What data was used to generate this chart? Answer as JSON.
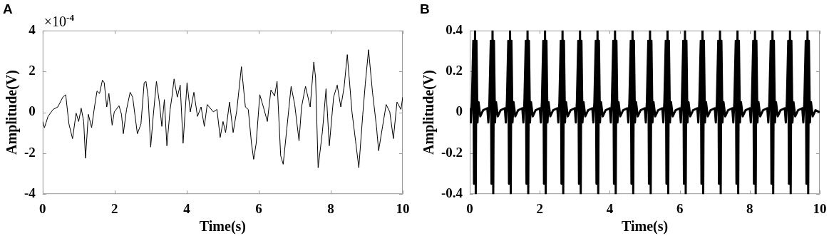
{
  "chart_data": [
    {
      "type": "line",
      "title": "A",
      "xlabel": "Time(s)",
      "ylabel": "Amplitude(V)",
      "annotations": [
        "×10$^{-4}$"
      ],
      "xlim": [
        0,
        10
      ],
      "ylim": [
        -4,
        4
      ],
      "xticks": [
        0,
        2,
        4,
        6,
        8,
        10
      ],
      "yticks": [
        -4,
        -2,
        0,
        2,
        4
      ],
      "x": [
        0,
        0.05,
        0.15,
        0.29,
        0.42,
        0.56,
        0.64,
        0.73,
        0.83,
        0.93,
        1.0,
        1.07,
        1.14,
        1.19,
        1.27,
        1.36,
        1.44,
        1.51,
        1.58,
        1.66,
        1.71,
        1.78,
        1.84,
        1.93,
        1.99,
        2.12,
        2.19,
        2.24,
        2.33,
        2.43,
        2.5,
        2.63,
        2.73,
        2.82,
        2.87,
        2.93,
        3.0,
        3.07,
        3.16,
        3.24,
        3.31,
        3.38,
        3.45,
        3.54,
        3.59,
        3.65,
        3.74,
        3.82,
        3.9,
        4.01,
        4.1,
        4.2,
        4.3,
        4.4,
        4.49,
        4.57,
        4.74,
        4.84,
        4.93,
        5.01,
        5.08,
        5.19,
        5.29,
        5.39,
        5.52,
        5.63,
        5.71,
        5.8,
        5.86,
        5.93,
        6.03,
        6.13,
        6.24,
        6.34,
        6.44,
        6.51,
        6.61,
        6.68,
        6.78,
        6.9,
        7.0,
        7.12,
        7.19,
        7.3,
        7.43,
        7.53,
        7.58,
        7.65,
        7.77,
        7.87,
        7.96,
        8.08,
        8.18,
        8.28,
        8.37,
        8.46,
        8.59,
        8.69,
        8.78,
        8.89,
        8.96,
        9.05,
        9.16,
        9.27,
        9.33,
        9.44,
        9.54,
        9.64,
        9.74,
        9.84,
        9.95,
        10.0
      ],
      "series": [
        {
          "color": "#000000",
          "values": [
            -0.45,
            -0.75,
            -0.2,
            0.14,
            0.26,
            0.74,
            0.86,
            -0.57,
            -1.29,
            -0.04,
            -0.45,
            0.2,
            -0.45,
            -2.24,
            -0.1,
            -0.75,
            0.26,
            1.04,
            0.92,
            1.57,
            1.45,
            0.26,
            0.92,
            -0.63,
            0.02,
            0.32,
            -0.1,
            -1.05,
            0.14,
            0.98,
            0.74,
            -1.05,
            -0.57,
            1.45,
            1.51,
            0.74,
            -1.7,
            -0.2,
            1.51,
            0.5,
            -0.69,
            0.62,
            -1.64,
            0.14,
            0.74,
            1.63,
            0.74,
            1.33,
            -1.52,
            1.45,
            0.02,
            0.98,
            -0.2,
            0.26,
            -0.69,
            0.38,
            0.02,
            0.14,
            -1.23,
            -0.45,
            -0.99,
            0.5,
            -0.99,
            0.08,
            2.23,
            0.26,
            0.14,
            -1.52,
            -2.3,
            -1.52,
            0.86,
            0.26,
            -0.45,
            1.1,
            0.8,
            1.51,
            -2.12,
            -2.54,
            -0.81,
            1.27,
            0.38,
            -1.4,
            0.26,
            1.27,
            0.26,
            2.46,
            1.69,
            -2.71,
            -0.93,
            1.15,
            -1.64,
            0.74,
            1.33,
            0.26,
            1.21,
            2.82,
            0.02,
            -1.4,
            -2.71,
            -0.1,
            1.39,
            3.06,
            0.98,
            -0.69,
            -1.88,
            -0.69,
            0.38,
            0.02,
            -1.29,
            0.5,
            0.14,
            0.74
          ]
        }
      ]
    },
    {
      "type": "line",
      "title": "B",
      "xlabel": "Time(s)",
      "ylabel": "Amplitude(V)",
      "xlim": [
        0,
        10
      ],
      "ylim": [
        -0.4,
        0.4
      ],
      "xticks": [
        0,
        2,
        4,
        6,
        8,
        10
      ],
      "yticks": [
        -0.4,
        -0.2,
        0,
        0.2,
        0.4
      ],
      "x": [
        0,
        0.03,
        0.06,
        0.1,
        0.12,
        0.15,
        0.17,
        0.19,
        0.22,
        0.25,
        0.3,
        0.38,
        0.5,
        0.53,
        0.56,
        0.6,
        0.62,
        0.65,
        0.67,
        0.69,
        0.72,
        0.75,
        0.8,
        0.88,
        1,
        1.03,
        1.06,
        1.1,
        1.12,
        1.15,
        1.17,
        1.19,
        1.22,
        1.25,
        1.3,
        1.38,
        1.5,
        1.53,
        1.56,
        1.6,
        1.62,
        1.65,
        1.67,
        1.69,
        1.72,
        1.75,
        1.8,
        1.88,
        2,
        2.03,
        2.06,
        2.1,
        2.12,
        2.15,
        2.17,
        2.19,
        2.22,
        2.25,
        2.3,
        2.38,
        2.5,
        2.53,
        2.56,
        2.6,
        2.62,
        2.65,
        2.67,
        2.69,
        2.72,
        2.75,
        2.8,
        2.88,
        3,
        3.03,
        3.06,
        3.1,
        3.12,
        3.15,
        3.17,
        3.19,
        3.22,
        3.25,
        3.3,
        3.38,
        3.5,
        3.53,
        3.56,
        3.6,
        3.62,
        3.65,
        3.67,
        3.69,
        3.72,
        3.75,
        3.8,
        3.88,
        4,
        4.03,
        4.06,
        4.1,
        4.12,
        4.15,
        4.17,
        4.19,
        4.22,
        4.25,
        4.3,
        4.38,
        4.5,
        4.53,
        4.56,
        4.6,
        4.62,
        4.65,
        4.67,
        4.69,
        4.72,
        4.75,
        4.8,
        4.88,
        5,
        5.03,
        5.06,
        5.1,
        5.12,
        5.15,
        5.17,
        5.19,
        5.22,
        5.25,
        5.3,
        5.38,
        5.5,
        5.53,
        5.56,
        5.6,
        5.62,
        5.65,
        5.67,
        5.69,
        5.72,
        5.75,
        5.8,
        5.88,
        6,
        6.03,
        6.06,
        6.1,
        6.12,
        6.15,
        6.17,
        6.19,
        6.22,
        6.25,
        6.3,
        6.38,
        6.5,
        6.53,
        6.56,
        6.6,
        6.62,
        6.65,
        6.67,
        6.69,
        6.72,
        6.75,
        6.8,
        6.88,
        7,
        7.03,
        7.06,
        7.1,
        7.12,
        7.15,
        7.17,
        7.19,
        7.22,
        7.25,
        7.3,
        7.38,
        7.5,
        7.53,
        7.56,
        7.6,
        7.62,
        7.65,
        7.67,
        7.69,
        7.72,
        7.75,
        7.8,
        7.88,
        8,
        8.03,
        8.06,
        8.1,
        8.12,
        8.15,
        8.17,
        8.19,
        8.22,
        8.25,
        8.3,
        8.38,
        8.5,
        8.53,
        8.56,
        8.6,
        8.62,
        8.65,
        8.67,
        8.69,
        8.72,
        8.75,
        8.8,
        8.88,
        9,
        9.03,
        9.06,
        9.1,
        9.12,
        9.15,
        9.17,
        9.19,
        9.22,
        9.25,
        9.3,
        9.38,
        9.5,
        9.53,
        9.56,
        9.6,
        9.62,
        9.65,
        9.67,
        9.69,
        9.72,
        9.75,
        9.8,
        9.88,
        10
      ],
      "series": [
        {
          "color": "#000000",
          "values": [
            0.02,
            -0.05,
            0.05,
            0.35,
            -0.35,
            0.4,
            -0.4,
            0.35,
            -0.05,
            0.05,
            -0.02,
            0.01,
            0.02,
            -0.05,
            0.05,
            0.35,
            -0.35,
            0.4,
            -0.4,
            0.35,
            -0.05,
            0.05,
            -0.02,
            0.01,
            0.02,
            -0.05,
            0.05,
            0.35,
            -0.35,
            0.4,
            -0.4,
            0.35,
            -0.05,
            0.05,
            -0.02,
            0.01,
            0.02,
            -0.05,
            0.05,
            0.35,
            -0.35,
            0.4,
            -0.4,
            0.35,
            -0.05,
            0.05,
            -0.02,
            0.01,
            0.02,
            -0.05,
            0.05,
            0.35,
            -0.35,
            0.4,
            -0.4,
            0.35,
            -0.05,
            0.05,
            -0.02,
            0.01,
            0.02,
            -0.05,
            0.05,
            0.35,
            -0.35,
            0.4,
            -0.4,
            0.35,
            -0.05,
            0.05,
            -0.02,
            0.01,
            0.02,
            -0.05,
            0.05,
            0.35,
            -0.35,
            0.4,
            -0.4,
            0.35,
            -0.05,
            0.05,
            -0.02,
            0.01,
            0.02,
            -0.05,
            0.05,
            0.35,
            -0.35,
            0.4,
            -0.4,
            0.35,
            -0.05,
            0.05,
            -0.02,
            0.01,
            0.02,
            -0.05,
            0.05,
            0.35,
            -0.35,
            0.4,
            -0.4,
            0.35,
            -0.05,
            0.05,
            -0.02,
            0.01,
            0.02,
            -0.05,
            0.05,
            0.35,
            -0.35,
            0.4,
            -0.4,
            0.35,
            -0.05,
            0.05,
            -0.02,
            0.01,
            0.02,
            -0.05,
            0.05,
            0.35,
            -0.35,
            0.4,
            -0.4,
            0.35,
            -0.05,
            0.05,
            -0.02,
            0.01,
            0.02,
            -0.05,
            0.05,
            0.35,
            -0.35,
            0.4,
            -0.4,
            0.35,
            -0.05,
            0.05,
            -0.02,
            0.01,
            0.02,
            -0.05,
            0.05,
            0.35,
            -0.35,
            0.4,
            -0.4,
            0.35,
            -0.05,
            0.05,
            -0.02,
            0.01,
            0.02,
            -0.05,
            0.05,
            0.35,
            -0.35,
            0.4,
            -0.4,
            0.35,
            -0.05,
            0.05,
            -0.02,
            0.01,
            0.02,
            -0.05,
            0.05,
            0.35,
            -0.35,
            0.4,
            -0.4,
            0.35,
            -0.05,
            0.05,
            -0.02,
            0.01,
            0.02,
            -0.05,
            0.05,
            0.35,
            -0.35,
            0.4,
            -0.4,
            0.35,
            -0.05,
            0.05,
            -0.02,
            0.01,
            0.02,
            -0.05,
            0.05,
            0.35,
            -0.35,
            0.4,
            -0.4,
            0.35,
            -0.05,
            0.05,
            -0.02,
            0.01,
            0.02,
            -0.05,
            0.05,
            0.35,
            -0.35,
            0.4,
            -0.4,
            0.35,
            -0.05,
            0.05,
            -0.02,
            0.01,
            0.02,
            -0.05,
            0.05,
            0.35,
            -0.35,
            0.4,
            -0.4,
            0.35,
            -0.05,
            0.05,
            -0.02,
            0.01,
            0.02,
            -0.05,
            0.05,
            0.35,
            -0.35,
            0.4,
            -0.4,
            0.35,
            -0.05,
            0.05,
            -0.02,
            0.01,
            0
          ]
        }
      ]
    }
  ]
}
